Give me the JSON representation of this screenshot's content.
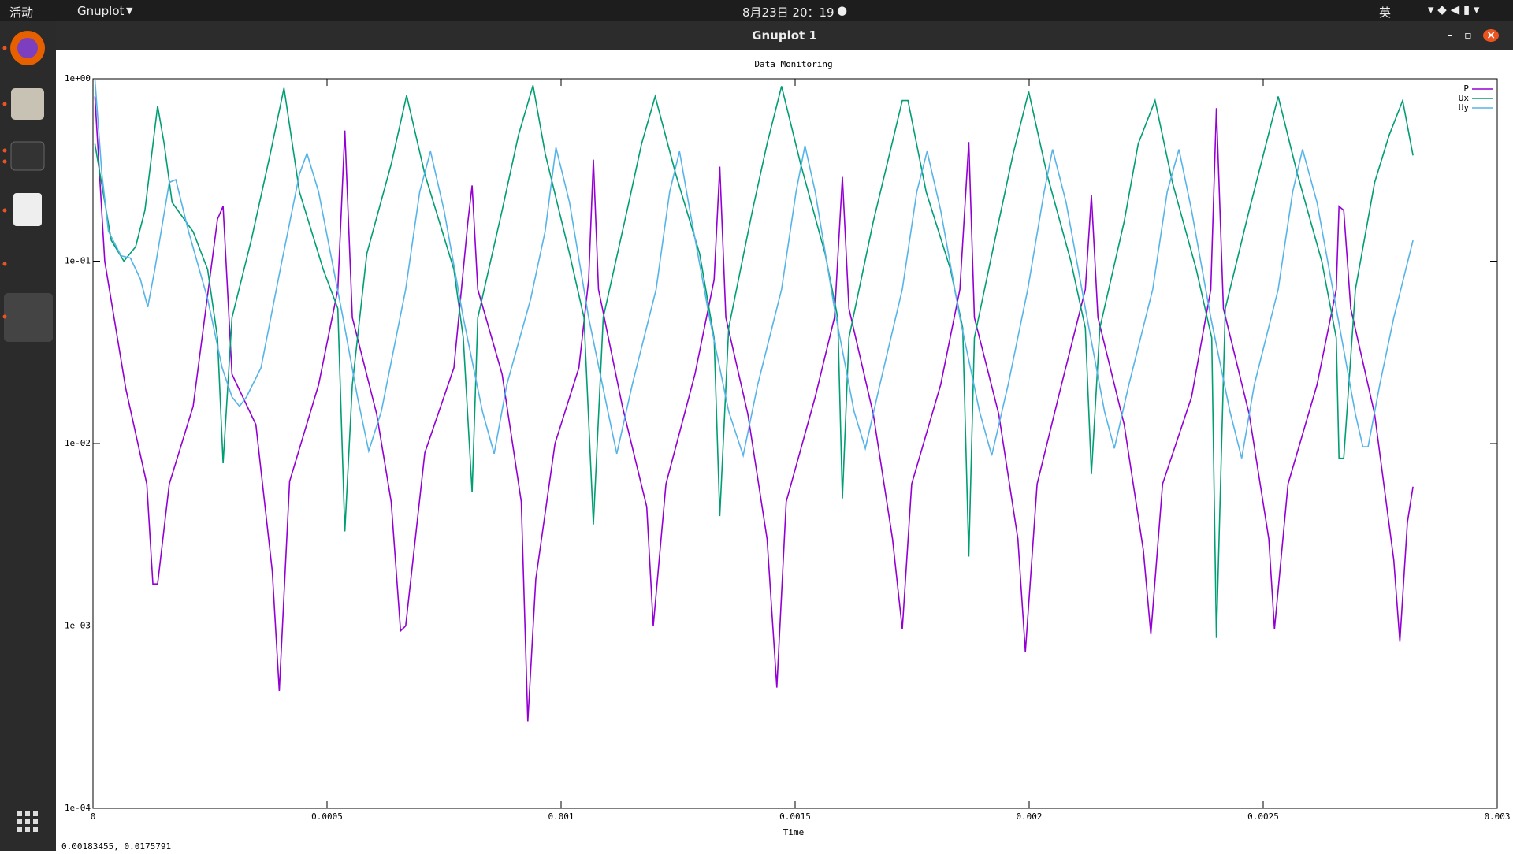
{
  "topbar": {
    "activities": "活动",
    "app": "Gnuplot",
    "clock": "8月23日 20：19",
    "input": "英"
  },
  "window": {
    "title": "Gnuplot 1",
    "status": "0.00183455,  0.0175791"
  },
  "chart_data": {
    "type": "line",
    "title": "Data Monitoring",
    "x_label": "Time",
    "log_y": true,
    "grid": false,
    "legend": "top-right",
    "xlim": [
      0,
      0.003
    ],
    "xticks": [
      0,
      0.0005,
      0.001,
      0.0015,
      0.002,
      0.0025,
      0.003
    ],
    "ylim": [
      0.0001,
      1
    ],
    "yticks": [
      {
        "value": 0.0001,
        "label": "1e-04"
      },
      {
        "value": 0.001,
        "label": "1e-03"
      },
      {
        "value": 0.01,
        "label": "1e-02"
      },
      {
        "value": 0.1,
        "label": "1e-01"
      },
      {
        "value": 1,
        "label": "1e+00"
      }
    ],
    "series": [
      {
        "name": "P",
        "color": "#9400d3",
        "x": [
          4e-06,
          2.5e-05,
          7e-05,
          0.000115,
          0.000128,
          0.000138,
          0.000163,
          0.000214,
          0.000266,
          0.000278,
          0.000297,
          0.000348,
          0.000383,
          0.000398,
          0.00042,
          0.000482,
          0.000523,
          0.000538,
          0.000554,
          0.000606,
          0.000637,
          0.000657,
          0.000668,
          0.000709,
          0.000771,
          0.000801,
          0.00081,
          0.000822,
          0.000874,
          0.000915,
          0.000929,
          0.000946,
          0.000987,
          0.001038,
          0.001059,
          0.001069,
          0.00108,
          0.001131,
          0.001183,
          0.001197,
          0.001224,
          0.001286,
          0.001327,
          0.001339,
          0.001352,
          0.001399,
          0.00144,
          0.001461,
          0.001481,
          0.001543,
          0.001584,
          0.001601,
          0.001615,
          0.001667,
          0.001708,
          0.001729,
          0.001749,
          0.001811,
          0.001852,
          0.001871,
          0.001883,
          0.001935,
          0.001976,
          0.001992,
          0.002017,
          0.002069,
          0.00212,
          0.002133,
          0.002147,
          0.002203,
          0.002244,
          0.00226,
          0.002285,
          0.002347,
          0.002388,
          0.0024,
          0.002415,
          0.00247,
          0.002512,
          0.002524,
          0.002553,
          0.002615,
          0.002656,
          0.002662,
          0.002672,
          0.002687,
          0.002738,
          0.002779,
          0.002792,
          0.002808,
          0.00282
        ],
        "values": [
          0.8,
          0.1,
          0.02,
          0.006,
          0.0017,
          0.0017,
          0.006,
          0.016,
          0.17,
          0.2,
          0.024,
          0.0127,
          0.002,
          0.00044,
          0.0062,
          0.021,
          0.07,
          0.52,
          0.049,
          0.0145,
          0.0048,
          0.00094,
          0.001,
          0.0089,
          0.026,
          0.165,
          0.26,
          0.07,
          0.024,
          0.0048,
          0.0003,
          0.0018,
          0.01,
          0.026,
          0.079,
          0.36,
          0.07,
          0.016,
          0.0045,
          0.001,
          0.006,
          0.024,
          0.079,
          0.33,
          0.049,
          0.0145,
          0.003,
          0.00046,
          0.0048,
          0.018,
          0.049,
          0.29,
          0.055,
          0.0145,
          0.003,
          0.00096,
          0.006,
          0.021,
          0.07,
          0.45,
          0.049,
          0.0145,
          0.003,
          0.00072,
          0.006,
          0.021,
          0.07,
          0.23,
          0.049,
          0.0127,
          0.0026,
          0.0009,
          0.006,
          0.018,
          0.07,
          0.69,
          0.055,
          0.0145,
          0.003,
          0.00096,
          0.006,
          0.021,
          0.07,
          0.2,
          0.19,
          0.055,
          0.0145,
          0.0023,
          0.00082,
          0.0037,
          0.0058
        ]
      },
      {
        "name": "Ux",
        "color": "#009e73",
        "x": [
          4e-06,
          3.9e-05,
          6.6e-05,
          9.1e-05,
          0.000111,
          0.000138,
          0.000152,
          0.000169,
          0.000214,
          0.000245,
          0.000266,
          0.000278,
          0.000297,
          0.000338,
          0.000379,
          0.000408,
          0.000441,
          0.000492,
          0.000523,
          0.000538,
          0.000554,
          0.000585,
          0.000637,
          0.00067,
          0.000709,
          0.000771,
          0.000791,
          0.00081,
          0.000822,
          0.000874,
          0.000909,
          0.00094,
          0.000966,
          0.001018,
          0.001049,
          0.001069,
          0.00109,
          0.001141,
          0.001172,
          0.001201,
          0.001245,
          0.001296,
          0.001327,
          0.001339,
          0.001358,
          0.001409,
          0.00144,
          0.001471,
          0.001512,
          0.001564,
          0.001591,
          0.001601,
          0.001615,
          0.001667,
          0.001702,
          0.001729,
          0.001741,
          0.00178,
          0.001832,
          0.001858,
          0.001871,
          0.001883,
          0.001935,
          0.001966,
          0.001999,
          0.002038,
          0.002089,
          0.00212,
          0.002133,
          0.002151,
          0.002203,
          0.002233,
          0.002269,
          0.002306,
          0.002357,
          0.00239,
          0.0024,
          0.002419,
          0.00247,
          0.002501,
          0.002532,
          0.002573,
          0.002625,
          0.002656,
          0.002662,
          0.002672,
          0.002697,
          0.002738,
          0.002769,
          0.002798,
          0.00282
        ],
        "values": [
          0.44,
          0.13,
          0.1,
          0.12,
          0.19,
          0.71,
          0.44,
          0.21,
          0.145,
          0.09,
          0.038,
          0.0078,
          0.049,
          0.13,
          0.39,
          0.89,
          0.24,
          0.09,
          0.055,
          0.0033,
          0.021,
          0.11,
          0.34,
          0.81,
          0.3,
          0.09,
          0.038,
          0.0054,
          0.049,
          0.19,
          0.49,
          0.92,
          0.39,
          0.11,
          0.049,
          0.0036,
          0.049,
          0.19,
          0.44,
          0.8,
          0.3,
          0.11,
          0.038,
          0.004,
          0.043,
          0.19,
          0.44,
          0.91,
          0.34,
          0.11,
          0.049,
          0.005,
          0.038,
          0.165,
          0.39,
          0.76,
          0.76,
          0.24,
          0.09,
          0.043,
          0.0024,
          0.038,
          0.165,
          0.39,
          0.85,
          0.3,
          0.1,
          0.043,
          0.0068,
          0.043,
          0.165,
          0.44,
          0.76,
          0.27,
          0.09,
          0.038,
          0.00086,
          0.055,
          0.19,
          0.39,
          0.8,
          0.3,
          0.1,
          0.038,
          0.0083,
          0.0083,
          0.07,
          0.27,
          0.49,
          0.76,
          0.38
        ]
      },
      {
        "name": "Uy",
        "color": "#56b4e9",
        "x": [
          4e-06,
          1.9e-05,
          3.3e-05,
          6e-05,
          8e-05,
          0.000101,
          0.000117,
          0.000132,
          0.000163,
          0.000177,
          0.000204,
          0.000245,
          0.000276,
          0.000297,
          0.000313,
          0.000328,
          0.000359,
          0.0004,
          0.000441,
          0.000457,
          0.000482,
          0.000534,
          0.000565,
          0.000589,
          0.000616,
          0.000668,
          0.000698,
          0.000721,
          0.00075,
          0.000791,
          0.000832,
          0.000857,
          0.000884,
          0.000935,
          0.000966,
          0.000989,
          0.001018,
          0.001059,
          0.0011,
          0.001119,
          0.001152,
          0.001203,
          0.001232,
          0.001253,
          0.001275,
          0.001317,
          0.001358,
          0.001389,
          0.00142,
          0.001471,
          0.001502,
          0.001521,
          0.001543,
          0.001584,
          0.001626,
          0.00165,
          0.001681,
          0.001729,
          0.00176,
          0.001782,
          0.001811,
          0.001852,
          0.001894,
          0.00192,
          0.001955,
          0.001997,
          0.002032,
          0.00205,
          0.002079,
          0.00212,
          0.002161,
          0.002182,
          0.002213,
          0.002264,
          0.002295,
          0.00232,
          0.002347,
          0.002388,
          0.002429,
          0.002454,
          0.002481,
          0.002532,
          0.002563,
          0.002584,
          0.002615,
          0.002656,
          0.002697,
          0.002713,
          0.002724,
          0.002749,
          0.002779,
          0.00282
        ],
        "values": [
          1.0,
          0.3,
          0.146,
          0.107,
          0.104,
          0.08,
          0.056,
          0.09,
          0.27,
          0.28,
          0.146,
          0.062,
          0.026,
          0.018,
          0.016,
          0.018,
          0.026,
          0.09,
          0.3,
          0.39,
          0.24,
          0.049,
          0.018,
          0.0091,
          0.015,
          0.07,
          0.24,
          0.4,
          0.19,
          0.049,
          0.015,
          0.0088,
          0.021,
          0.062,
          0.146,
          0.42,
          0.21,
          0.049,
          0.015,
          0.0088,
          0.021,
          0.07,
          0.24,
          0.4,
          0.19,
          0.049,
          0.015,
          0.0086,
          0.021,
          0.07,
          0.24,
          0.43,
          0.24,
          0.055,
          0.015,
          0.0094,
          0.021,
          0.07,
          0.24,
          0.4,
          0.19,
          0.049,
          0.015,
          0.0086,
          0.021,
          0.07,
          0.24,
          0.41,
          0.21,
          0.055,
          0.015,
          0.0094,
          0.021,
          0.07,
          0.24,
          0.41,
          0.19,
          0.049,
          0.015,
          0.0083,
          0.021,
          0.07,
          0.24,
          0.41,
          0.21,
          0.055,
          0.0145,
          0.0096,
          0.0096,
          0.021,
          0.049,
          0.13
        ]
      }
    ]
  }
}
